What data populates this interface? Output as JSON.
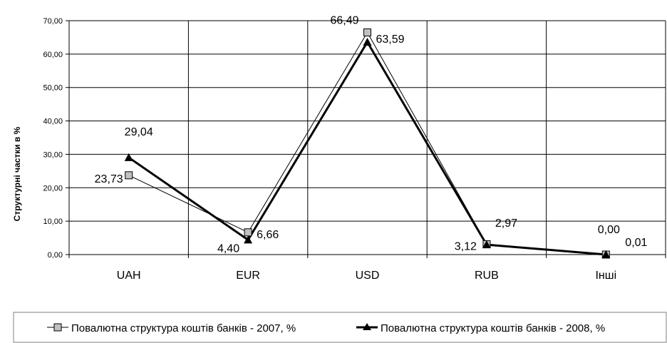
{
  "chart_data": {
    "type": "line",
    "categories": [
      "UAH",
      "EUR",
      "USD",
      "RUB",
      "Інші"
    ],
    "ylabel": "Структурні частки в %",
    "ylim": [
      0,
      70
    ],
    "yticks": [
      "0,00",
      "10,00",
      "20,00",
      "30,00",
      "40,00",
      "50,00",
      "60,00",
      "70,00"
    ],
    "grid": true,
    "legend_position": "bottom",
    "series": [
      {
        "name": "Повалютна структура коштів банків - 2007, %",
        "marker": "square",
        "color": "#000000",
        "marker_fill": "#c0c0c0",
        "values": [
          23.73,
          6.66,
          66.49,
          3.12,
          0.0
        ],
        "labels": [
          "23,73",
          "6,66",
          "66,49",
          "3,12",
          "0,00"
        ]
      },
      {
        "name": "Повалютна структура коштів банків - 2008, %",
        "marker": "triangle",
        "color": "#000000",
        "marker_fill": "#000000",
        "values": [
          29.04,
          4.4,
          63.59,
          2.97,
          0.01
        ],
        "labels": [
          "29,04",
          "4,40",
          "63,59",
          "2,97",
          "0,01"
        ]
      }
    ]
  }
}
